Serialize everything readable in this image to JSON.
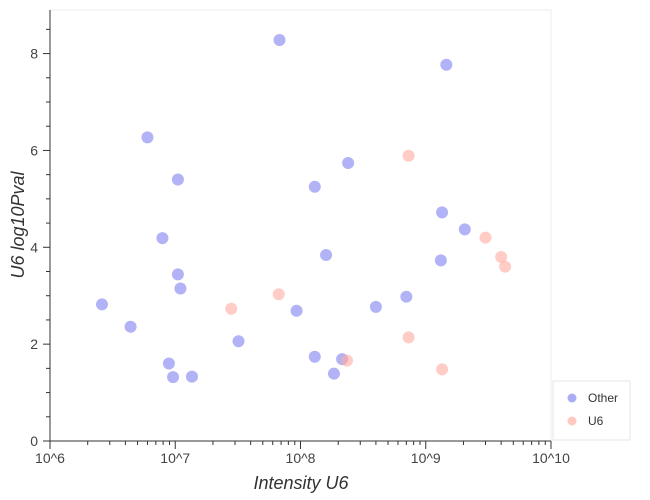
{
  "chart_data": {
    "type": "scatter",
    "xlabel": "Intensity U6",
    "ylabel": "U6 log10Pval",
    "xscale": "log",
    "xlim": [
      1000000,
      10000000000
    ],
    "ylim": [
      0,
      8.9
    ],
    "x_ticks": [
      {
        "value": 1000000,
        "label": "10^6"
      },
      {
        "value": 10000000,
        "label": "10^7"
      },
      {
        "value": 100000000,
        "label": "10^8"
      },
      {
        "value": 1000000000,
        "label": "10^9"
      },
      {
        "value": 10000000000,
        "label": "10^10"
      }
    ],
    "y_ticks": [
      {
        "value": 0,
        "label": "0"
      },
      {
        "value": 2,
        "label": "2"
      },
      {
        "value": 4,
        "label": "4"
      },
      {
        "value": 6,
        "label": "6"
      },
      {
        "value": 8,
        "label": "8"
      }
    ],
    "grid": false,
    "legend_position": "bottom-right",
    "series": [
      {
        "name": "Other",
        "color": "#7f7ff0",
        "points": [
          {
            "x": 2600000,
            "y": 2.82
          },
          {
            "x": 4400000,
            "y": 2.36
          },
          {
            "x": 6000000,
            "y": 6.27
          },
          {
            "x": 7900000,
            "y": 4.19
          },
          {
            "x": 8900000,
            "y": 1.6
          },
          {
            "x": 9600000,
            "y": 1.32
          },
          {
            "x": 10500000,
            "y": 5.4
          },
          {
            "x": 10500000,
            "y": 3.44
          },
          {
            "x": 11000000,
            "y": 3.15
          },
          {
            "x": 13600000,
            "y": 1.33
          },
          {
            "x": 32000000,
            "y": 2.06
          },
          {
            "x": 68000000,
            "y": 8.28
          },
          {
            "x": 93000000,
            "y": 2.69
          },
          {
            "x": 130000000,
            "y": 5.25
          },
          {
            "x": 130000000,
            "y": 1.74
          },
          {
            "x": 160000000,
            "y": 3.84
          },
          {
            "x": 185000000,
            "y": 1.39
          },
          {
            "x": 215000000,
            "y": 1.69
          },
          {
            "x": 240000000,
            "y": 5.74
          },
          {
            "x": 400000000,
            "y": 2.77
          },
          {
            "x": 700000000,
            "y": 2.98
          },
          {
            "x": 1350000000,
            "y": 4.72
          },
          {
            "x": 1320000000,
            "y": 3.73
          },
          {
            "x": 1460000000,
            "y": 7.77
          },
          {
            "x": 2050000000,
            "y": 4.37
          }
        ]
      },
      {
        "name": "U6",
        "color": "#ffaaa0",
        "points": [
          {
            "x": 28000000,
            "y": 2.73
          },
          {
            "x": 67000000,
            "y": 3.03
          },
          {
            "x": 235000000,
            "y": 1.66
          },
          {
            "x": 730000000,
            "y": 5.89
          },
          {
            "x": 730000000,
            "y": 2.14
          },
          {
            "x": 1350000000,
            "y": 1.48
          },
          {
            "x": 3000000000,
            "y": 4.2
          },
          {
            "x": 4000000000,
            "y": 3.8
          },
          {
            "x": 4300000000,
            "y": 3.6
          }
        ]
      }
    ]
  }
}
